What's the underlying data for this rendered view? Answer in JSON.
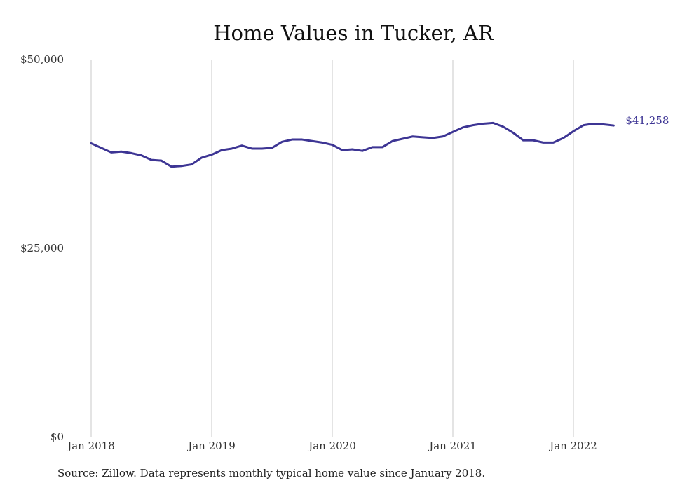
{
  "chart_data": {
    "type": "line",
    "title": "Home Values in Tucker, AR",
    "xlabel": "",
    "ylabel": "",
    "x_start": "2018-01",
    "x_ticks": [
      "Jan 2018",
      "Jan 2019",
      "Jan 2020",
      "Jan 2021",
      "Jan 2022"
    ],
    "y_ticks": [
      "$0",
      "$25,000",
      "$50,000"
    ],
    "ylim": [
      0,
      50000
    ],
    "grid": "vertical",
    "line_color": "#3d3594",
    "end_label": "$41,258",
    "series": [
      {
        "values": [
          38900,
          38300,
          37700,
          37800,
          37600,
          37300,
          36700,
          36600,
          35800,
          35900,
          36100,
          37000,
          37400,
          38000,
          38200,
          38600,
          38200,
          38200,
          38300,
          39100,
          39400,
          39400,
          39200,
          39000,
          38700,
          38000,
          38100,
          37900,
          38400,
          38400,
          39200,
          39500,
          39800,
          39700,
          39600,
          39800,
          40400,
          41000,
          41300,
          41500,
          41600,
          41100,
          40300,
          39300,
          39300,
          39000,
          39000,
          39600,
          40500,
          41300,
          41500,
          41400,
          41258
        ]
      }
    ]
  },
  "footer": {
    "source": "Source: Zillow. Data represents monthly typical home value since January 2018."
  }
}
